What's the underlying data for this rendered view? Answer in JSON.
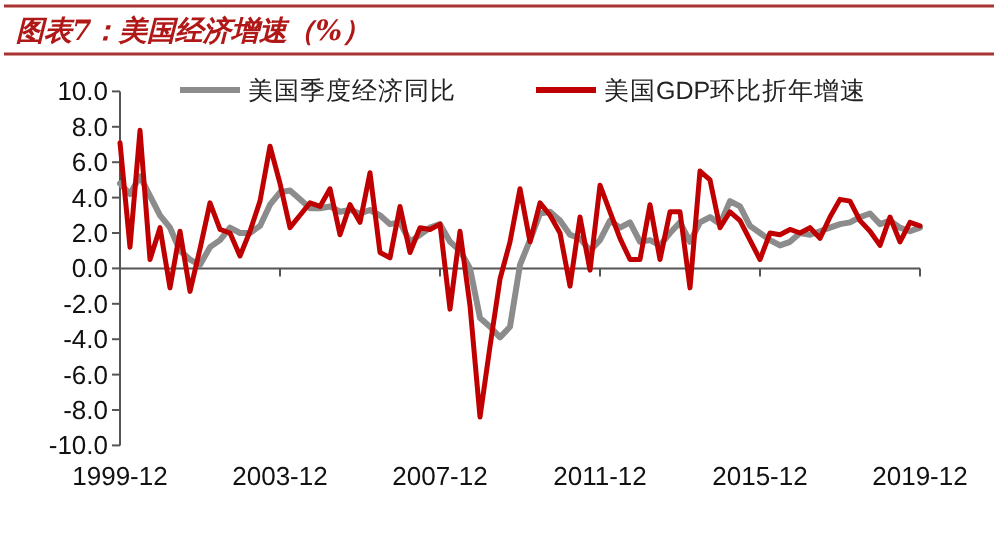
{
  "chart_data": {
    "type": "line",
    "title": "图表7：美国经济增速（%）",
    "x": [
      "1999-12",
      "2000-03",
      "2000-06",
      "2000-09",
      "2000-12",
      "2001-03",
      "2001-06",
      "2001-09",
      "2001-12",
      "2002-03",
      "2002-06",
      "2002-09",
      "2002-12",
      "2003-03",
      "2003-06",
      "2003-09",
      "2003-12",
      "2004-03",
      "2004-06",
      "2004-09",
      "2004-12",
      "2005-03",
      "2005-06",
      "2005-09",
      "2005-12",
      "2006-03",
      "2006-06",
      "2006-09",
      "2006-12",
      "2007-03",
      "2007-06",
      "2007-09",
      "2007-12",
      "2008-03",
      "2008-06",
      "2008-09",
      "2008-12",
      "2009-03",
      "2009-06",
      "2009-09",
      "2009-12",
      "2010-03",
      "2010-06",
      "2010-09",
      "2010-12",
      "2011-03",
      "2011-06",
      "2011-09",
      "2011-12",
      "2012-03",
      "2012-06",
      "2012-09",
      "2012-12",
      "2013-03",
      "2013-06",
      "2013-09",
      "2013-12",
      "2014-03",
      "2014-06",
      "2014-09",
      "2014-12",
      "2015-03",
      "2015-06",
      "2015-09",
      "2015-12",
      "2016-03",
      "2016-06",
      "2016-09",
      "2016-12",
      "2017-03",
      "2017-06",
      "2017-09",
      "2017-12",
      "2018-03",
      "2018-06",
      "2018-09",
      "2018-12",
      "2019-03",
      "2019-06",
      "2019-09",
      "2019-12"
    ],
    "series": [
      {
        "name": "美国季度经济同比",
        "color": "#8c8c8c",
        "values": [
          4.8,
          4.2,
          5.2,
          4.1,
          3.0,
          2.3,
          1.0,
          0.5,
          0.2,
          1.2,
          1.6,
          2.3,
          2.0,
          2.0,
          2.4,
          3.6,
          4.3,
          4.4,
          3.9,
          3.4,
          3.4,
          3.5,
          3.2,
          3.3,
          3.1,
          3.3,
          3.0,
          2.5,
          2.6,
          1.5,
          1.9,
          2.3,
          2.5,
          1.5,
          1.0,
          0.0,
          -2.8,
          -3.3,
          -3.9,
          -3.3,
          0.2,
          1.6,
          3.1,
          3.2,
          2.7,
          1.9,
          1.7,
          1.0,
          1.6,
          2.7,
          2.3,
          2.6,
          1.5,
          1.6,
          1.3,
          2.0,
          2.6,
          1.5,
          2.6,
          2.9,
          2.5,
          3.8,
          3.5,
          2.4,
          2.0,
          1.6,
          1.3,
          1.5,
          2.0,
          1.9,
          2.1,
          2.3,
          2.5,
          2.6,
          2.9,
          3.1,
          2.5,
          2.7,
          2.3,
          2.1,
          2.3
        ]
      },
      {
        "name": "美国GDP环比折年增速",
        "color": "#c00000",
        "values": [
          7.1,
          1.2,
          7.8,
          0.5,
          2.3,
          -1.1,
          2.1,
          -1.3,
          1.1,
          3.7,
          2.2,
          2.0,
          0.7,
          2.1,
          3.8,
          6.9,
          4.8,
          2.3,
          3.0,
          3.7,
          3.5,
          4.5,
          1.9,
          3.6,
          2.6,
          5.4,
          0.9,
          0.6,
          3.5,
          0.9,
          2.3,
          2.2,
          2.5,
          -2.3,
          2.1,
          -2.1,
          -8.4,
          -4.4,
          -0.6,
          1.5,
          4.5,
          1.5,
          3.7,
          3.0,
          2.0,
          -1.0,
          2.9,
          -0.1,
          4.7,
          3.2,
          1.7,
          0.5,
          0.5,
          3.6,
          0.5,
          3.2,
          3.2,
          -1.1,
          5.5,
          5.0,
          2.3,
          3.2,
          2.7,
          1.6,
          0.5,
          2.0,
          1.9,
          2.2,
          2.0,
          2.3,
          1.7,
          2.9,
          3.9,
          3.8,
          2.7,
          2.1,
          1.3,
          2.9,
          1.5,
          2.6,
          2.4
        ]
      }
    ],
    "xlim": [
      "1999-12",
      "2019-12"
    ],
    "xticks": [
      "1999-12",
      "2003-12",
      "2007-12",
      "2011-12",
      "2015-12",
      "2019-12"
    ],
    "ylim": [
      -10,
      10
    ],
    "yticks": [
      {
        "value": -10,
        "label": "-10.0"
      },
      {
        "value": -8,
        "label": "-8.0"
      },
      {
        "value": -6,
        "label": "-6.0"
      },
      {
        "value": -4,
        "label": "-4.0"
      },
      {
        "value": -2,
        "label": "-2.0"
      },
      {
        "value": 0,
        "label": "0.0"
      },
      {
        "value": 2,
        "label": "2.0"
      },
      {
        "value": 4,
        "label": "4.0"
      },
      {
        "value": 6,
        "label": "6.0"
      },
      {
        "value": 8,
        "label": "8.0"
      },
      {
        "value": 10,
        "label": "10.0"
      }
    ],
    "legend": "top",
    "marker": "none",
    "line_style": "solid"
  }
}
